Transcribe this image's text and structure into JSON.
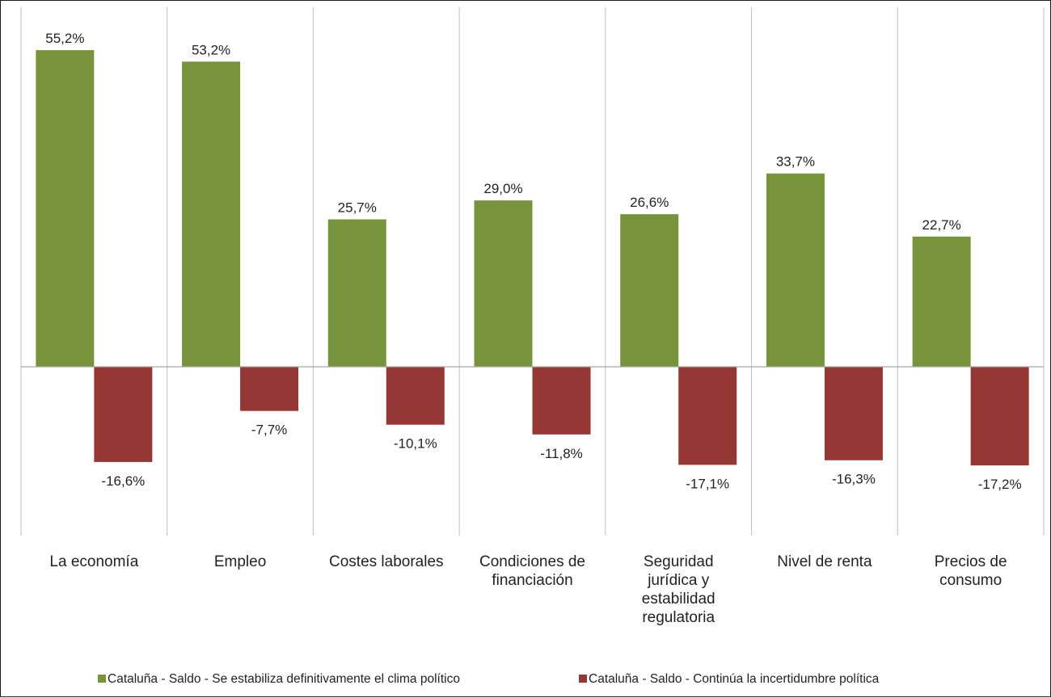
{
  "chart_data": {
    "type": "bar",
    "title": "",
    "xlabel": "",
    "ylabel": "",
    "categories": [
      [
        "La economía"
      ],
      [
        "Empleo"
      ],
      [
        "Costes laborales"
      ],
      [
        "Condiciones de",
        "financiación"
      ],
      [
        "Seguridad",
        "jurídica y",
        "estabilidad",
        "regulatoria"
      ],
      [
        "Nivel de renta"
      ],
      [
        "Precios de",
        "consumo"
      ]
    ],
    "series": [
      {
        "name": "Cataluña - Saldo - Se estabiliza definitivamente el clima político",
        "color": "#77933c",
        "values": [
          55.2,
          53.2,
          25.7,
          29.0,
          26.6,
          33.7,
          22.7
        ],
        "labels": [
          "55,2%",
          "53,2%",
          "25,7%",
          "29,0%",
          "26,6%",
          "33,7%",
          "22,7%"
        ]
      },
      {
        "name": "Cataluña - Saldo - Continúa la incertidumbre política",
        "color": "#953735",
        "values": [
          -16.6,
          -7.7,
          -10.1,
          -11.8,
          -17.1,
          -16.3,
          -17.2
        ],
        "labels": [
          "-16,6%",
          "-7,7%",
          "-10,1%",
          "-11,8%",
          "-17,1%",
          "-16,3%",
          "-17,2%"
        ]
      }
    ],
    "ylim": [
      -30,
      57
    ],
    "grid": "vertical category separators",
    "legend_position": "bottom"
  }
}
